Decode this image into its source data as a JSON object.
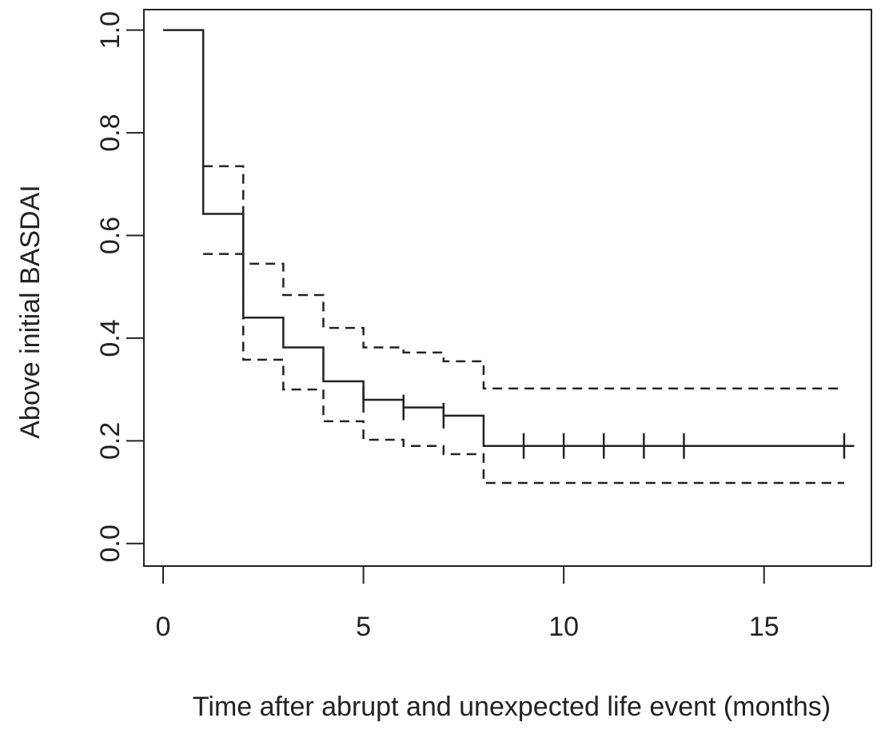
{
  "chart_data": {
    "type": "step",
    "xlabel": "Time after abrupt and unexpected life event (months)",
    "ylabel": "Above initial BASDAI",
    "xlim": [
      -0.48,
      17.68
    ],
    "ylim": [
      -0.044,
      1.04
    ],
    "xticks": [
      0,
      5,
      10,
      15
    ],
    "yticks": [
      {
        "value": 0,
        "label": "0.0"
      },
      {
        "value": 0.2,
        "label": "0.2"
      },
      {
        "value": 0.4,
        "label": "0.4"
      },
      {
        "value": 0.6,
        "label": "0.6"
      },
      {
        "value": 0.8,
        "label": "0.8"
      },
      {
        "value": 1,
        "label": "1.0"
      }
    ],
    "series": [
      {
        "x": [
          0,
          1,
          2,
          3,
          4,
          5,
          6,
          7,
          8,
          17.25
        ],
        "values": [
          1.0,
          0.642,
          0.44,
          0.382,
          0.316,
          0.28,
          0.265,
          0.249,
          0.19,
          0.19
        ],
        "color": "#222222",
        "dashed": false
      },
      {
        "x": [
          1,
          2,
          3,
          4,
          5,
          6,
          7,
          8,
          17
        ],
        "values": [
          0.735,
          0.545,
          0.484,
          0.42,
          0.382,
          0.372,
          0.355,
          0.302,
          0.302
        ],
        "color": "#222222",
        "dashed": true
      },
      {
        "x": [
          1,
          2,
          3,
          4,
          5,
          6,
          7,
          8,
          17
        ],
        "values": [
          0.564,
          0.358,
          0.3,
          0.238,
          0.202,
          0.19,
          0.174,
          0.118,
          0.118
        ],
        "color": "#222222",
        "dashed": true
      }
    ],
    "censored": {
      "x": [
        5,
        6,
        7,
        9,
        10,
        11,
        12,
        13,
        17
      ],
      "values": [
        0.28,
        0.265,
        0.249,
        0.19,
        0.19,
        0.19,
        0.19,
        0.19,
        0.19
      ],
      "color": "#222222"
    }
  }
}
